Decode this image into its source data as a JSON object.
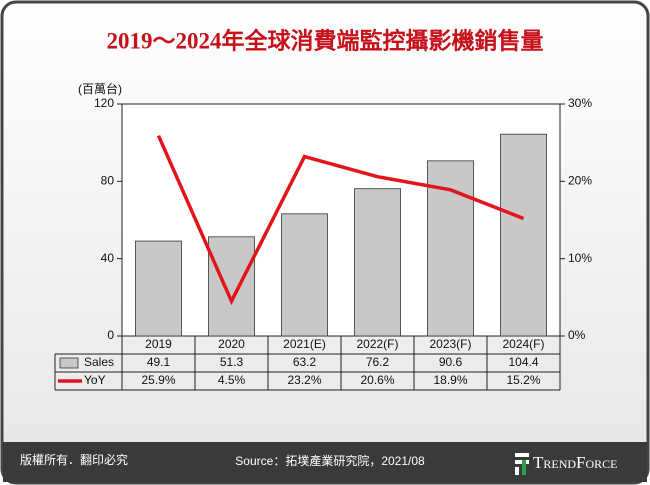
{
  "chart_data": {
    "type": "bar",
    "title": "2019～2024年全球消費端監控攝影機銷售量",
    "y_label": "(百萬台)",
    "categories": [
      "2019",
      "2020",
      "2021(E)",
      "2022(F)",
      "2023(F)",
      "2024(F)"
    ],
    "series": [
      {
        "name": "Sales",
        "color": "#c8c8c8",
        "values": [
          49.1,
          51.3,
          63.2,
          76.2,
          90.6,
          104.4
        ]
      },
      {
        "name": "YoY",
        "color": "#e3141c",
        "type": "line",
        "axis": "y2",
        "values": [
          25.9,
          4.5,
          23.2,
          20.6,
          18.9,
          15.2
        ],
        "value_labels": [
          "25.9%",
          "4.5%",
          "23.2%",
          "20.6%",
          "18.9%",
          "15.2%"
        ]
      }
    ],
    "ylim": [
      0,
      120
    ],
    "yticks": [
      0,
      40,
      80,
      120
    ],
    "y2lim": [
      0,
      30
    ],
    "y2ticks": [
      {
        "value": 0,
        "label": "0%"
      },
      {
        "value": 10,
        "label": "10%"
      },
      {
        "value": 20,
        "label": "20%"
      },
      {
        "value": 30,
        "label": "30%"
      }
    ]
  },
  "footer": {
    "copyright": "版權所有．翻印必究",
    "source": "Source：拓墣產業研究院，2021/08",
    "logo": "TrendForce"
  }
}
